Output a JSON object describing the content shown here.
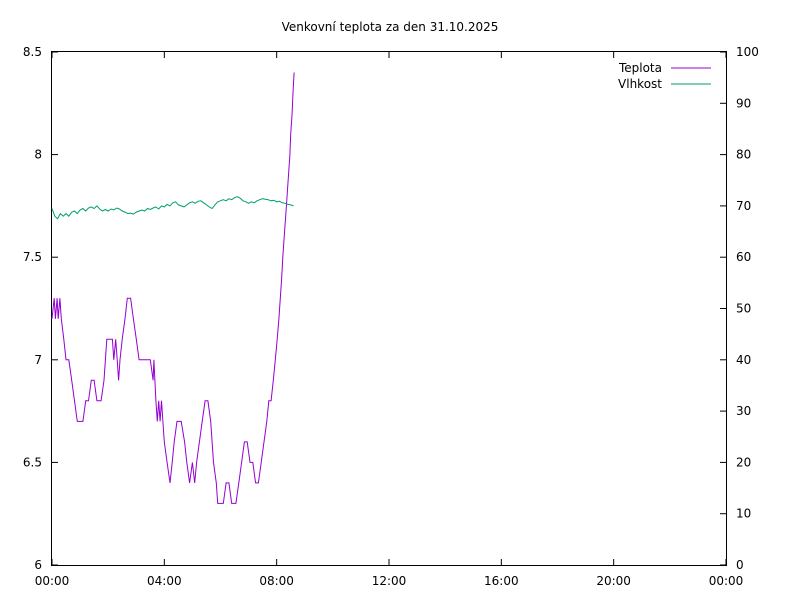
{
  "chart_data": {
    "type": "line",
    "title": "Venkovní teplota za den 31.10.2025",
    "x_ticks": [
      "00:00",
      "04:00",
      "08:00",
      "12:00",
      "16:00",
      "20:00",
      "00:00"
    ],
    "x_range_hours": [
      0,
      24
    ],
    "y_left": {
      "range": [
        6,
        8.5
      ],
      "ticks": [
        "6",
        "6.5",
        "7",
        "7.5",
        "8",
        "8.5"
      ]
    },
    "y_right": {
      "range": [
        0,
        100
      ],
      "ticks": [
        "0",
        "10",
        "20",
        "30",
        "40",
        "50",
        "60",
        "70",
        "80",
        "90",
        "100"
      ]
    },
    "legend_position": "top-right",
    "grid": false,
    "series": [
      {
        "name": "Teplota",
        "axis": "left",
        "color": "#9400d3",
        "points": [
          [
            0.0,
            7.2
          ],
          [
            0.08,
            7.3
          ],
          [
            0.12,
            7.2
          ],
          [
            0.18,
            7.3
          ],
          [
            0.22,
            7.2
          ],
          [
            0.28,
            7.3
          ],
          [
            0.33,
            7.2
          ],
          [
            0.42,
            7.1
          ],
          [
            0.5,
            7.0
          ],
          [
            0.6,
            7.0
          ],
          [
            0.7,
            6.9
          ],
          [
            0.8,
            6.8
          ],
          [
            0.9,
            6.7
          ],
          [
            1.0,
            6.7
          ],
          [
            1.1,
            6.7
          ],
          [
            1.2,
            6.8
          ],
          [
            1.3,
            6.8
          ],
          [
            1.4,
            6.9
          ],
          [
            1.5,
            6.9
          ],
          [
            1.6,
            6.8
          ],
          [
            1.75,
            6.8
          ],
          [
            1.85,
            6.9
          ],
          [
            1.9,
            7.0
          ],
          [
            1.95,
            7.1
          ],
          [
            2.05,
            7.1
          ],
          [
            2.15,
            7.1
          ],
          [
            2.2,
            7.0
          ],
          [
            2.27,
            7.1
          ],
          [
            2.32,
            7.0
          ],
          [
            2.37,
            6.9
          ],
          [
            2.42,
            7.0
          ],
          [
            2.5,
            7.1
          ],
          [
            2.6,
            7.2
          ],
          [
            2.68,
            7.3
          ],
          [
            2.8,
            7.3
          ],
          [
            2.9,
            7.2
          ],
          [
            3.0,
            7.1
          ],
          [
            3.1,
            7.0
          ],
          [
            3.3,
            7.0
          ],
          [
            3.5,
            7.0
          ],
          [
            3.6,
            6.9
          ],
          [
            3.63,
            7.0
          ],
          [
            3.7,
            6.8
          ],
          [
            3.75,
            6.7
          ],
          [
            3.8,
            6.8
          ],
          [
            3.85,
            6.7
          ],
          [
            3.9,
            6.8
          ],
          [
            3.95,
            6.7
          ],
          [
            4.0,
            6.6
          ],
          [
            4.1,
            6.5
          ],
          [
            4.2,
            6.4
          ],
          [
            4.28,
            6.5
          ],
          [
            4.35,
            6.6
          ],
          [
            4.45,
            6.7
          ],
          [
            4.6,
            6.7
          ],
          [
            4.72,
            6.6
          ],
          [
            4.8,
            6.5
          ],
          [
            4.9,
            6.4
          ],
          [
            5.0,
            6.5
          ],
          [
            5.08,
            6.4
          ],
          [
            5.15,
            6.5
          ],
          [
            5.25,
            6.6
          ],
          [
            5.35,
            6.7
          ],
          [
            5.45,
            6.8
          ],
          [
            5.55,
            6.8
          ],
          [
            5.65,
            6.7
          ],
          [
            5.75,
            6.5
          ],
          [
            5.85,
            6.4
          ],
          [
            5.9,
            6.3
          ],
          [
            6.0,
            6.3
          ],
          [
            6.1,
            6.3
          ],
          [
            6.2,
            6.4
          ],
          [
            6.3,
            6.4
          ],
          [
            6.4,
            6.3
          ],
          [
            6.55,
            6.3
          ],
          [
            6.65,
            6.4
          ],
          [
            6.75,
            6.5
          ],
          [
            6.85,
            6.6
          ],
          [
            6.95,
            6.6
          ],
          [
            7.05,
            6.5
          ],
          [
            7.15,
            6.5
          ],
          [
            7.25,
            6.4
          ],
          [
            7.35,
            6.4
          ],
          [
            7.45,
            6.5
          ],
          [
            7.55,
            6.6
          ],
          [
            7.65,
            6.7
          ],
          [
            7.72,
            6.8
          ],
          [
            7.8,
            6.8
          ],
          [
            7.88,
            6.9
          ],
          [
            7.95,
            7.0
          ],
          [
            8.02,
            7.1
          ],
          [
            8.08,
            7.2
          ],
          [
            8.13,
            7.3
          ],
          [
            8.18,
            7.4
          ],
          [
            8.22,
            7.5
          ],
          [
            8.27,
            7.6
          ],
          [
            8.32,
            7.7
          ],
          [
            8.37,
            7.8
          ],
          [
            8.42,
            7.9
          ],
          [
            8.47,
            8.0
          ],
          [
            8.5,
            8.1
          ],
          [
            8.55,
            8.2
          ],
          [
            8.58,
            8.3
          ],
          [
            8.62,
            8.4
          ]
        ]
      },
      {
        "name": "Vlhkost",
        "axis": "right",
        "color": "#009e73",
        "points": [
          [
            0.0,
            69.5
          ],
          [
            0.1,
            68.0
          ],
          [
            0.2,
            67.5
          ],
          [
            0.3,
            68.5
          ],
          [
            0.4,
            68.0
          ],
          [
            0.5,
            68.5
          ],
          [
            0.6,
            68.0
          ],
          [
            0.7,
            68.8
          ],
          [
            0.8,
            69.0
          ],
          [
            0.9,
            68.5
          ],
          [
            1.0,
            69.2
          ],
          [
            1.1,
            69.5
          ],
          [
            1.2,
            69.0
          ],
          [
            1.3,
            69.6
          ],
          [
            1.4,
            69.8
          ],
          [
            1.5,
            69.5
          ],
          [
            1.6,
            70.0
          ],
          [
            1.7,
            69.4
          ],
          [
            1.8,
            69.0
          ],
          [
            1.9,
            69.3
          ],
          [
            2.0,
            69.0
          ],
          [
            2.1,
            69.4
          ],
          [
            2.2,
            69.2
          ],
          [
            2.3,
            69.6
          ],
          [
            2.4,
            69.4
          ],
          [
            2.5,
            69.0
          ],
          [
            2.6,
            68.8
          ],
          [
            2.7,
            68.5
          ],
          [
            2.8,
            68.6
          ],
          [
            2.9,
            68.4
          ],
          [
            3.0,
            68.8
          ],
          [
            3.1,
            69.0
          ],
          [
            3.2,
            69.2
          ],
          [
            3.3,
            69.0
          ],
          [
            3.4,
            69.5
          ],
          [
            3.5,
            69.3
          ],
          [
            3.6,
            69.6
          ],
          [
            3.7,
            69.8
          ],
          [
            3.8,
            69.4
          ],
          [
            3.9,
            70.0
          ],
          [
            4.0,
            69.8
          ],
          [
            4.1,
            70.3
          ],
          [
            4.2,
            70.0
          ],
          [
            4.3,
            70.6
          ],
          [
            4.4,
            70.8
          ],
          [
            4.5,
            70.2
          ],
          [
            4.6,
            70.0
          ],
          [
            4.7,
            69.8
          ],
          [
            4.8,
            70.2
          ],
          [
            4.9,
            70.6
          ],
          [
            5.0,
            70.8
          ],
          [
            5.1,
            70.5
          ],
          [
            5.2,
            70.9
          ],
          [
            5.3,
            71.0
          ],
          [
            5.4,
            70.6
          ],
          [
            5.5,
            70.2
          ],
          [
            5.6,
            69.8
          ],
          [
            5.7,
            69.5
          ],
          [
            5.8,
            70.2
          ],
          [
            5.9,
            70.8
          ],
          [
            6.0,
            71.0
          ],
          [
            6.1,
            71.2
          ],
          [
            6.2,
            71.0
          ],
          [
            6.3,
            71.4
          ],
          [
            6.4,
            71.2
          ],
          [
            6.5,
            71.6
          ],
          [
            6.6,
            71.8
          ],
          [
            6.7,
            71.5
          ],
          [
            6.8,
            71.0
          ],
          [
            6.9,
            70.8
          ],
          [
            7.0,
            70.5
          ],
          [
            7.1,
            70.8
          ],
          [
            7.2,
            70.6
          ],
          [
            7.3,
            71.0
          ],
          [
            7.4,
            71.2
          ],
          [
            7.5,
            71.4
          ],
          [
            7.6,
            71.3
          ],
          [
            7.7,
            71.2
          ],
          [
            7.8,
            71.0
          ],
          [
            7.9,
            71.1
          ],
          [
            8.0,
            70.8
          ],
          [
            8.1,
            70.9
          ],
          [
            8.2,
            70.6
          ],
          [
            8.3,
            70.5
          ],
          [
            8.4,
            70.3
          ],
          [
            8.5,
            70.2
          ],
          [
            8.6,
            70.0
          ]
        ]
      }
    ]
  }
}
